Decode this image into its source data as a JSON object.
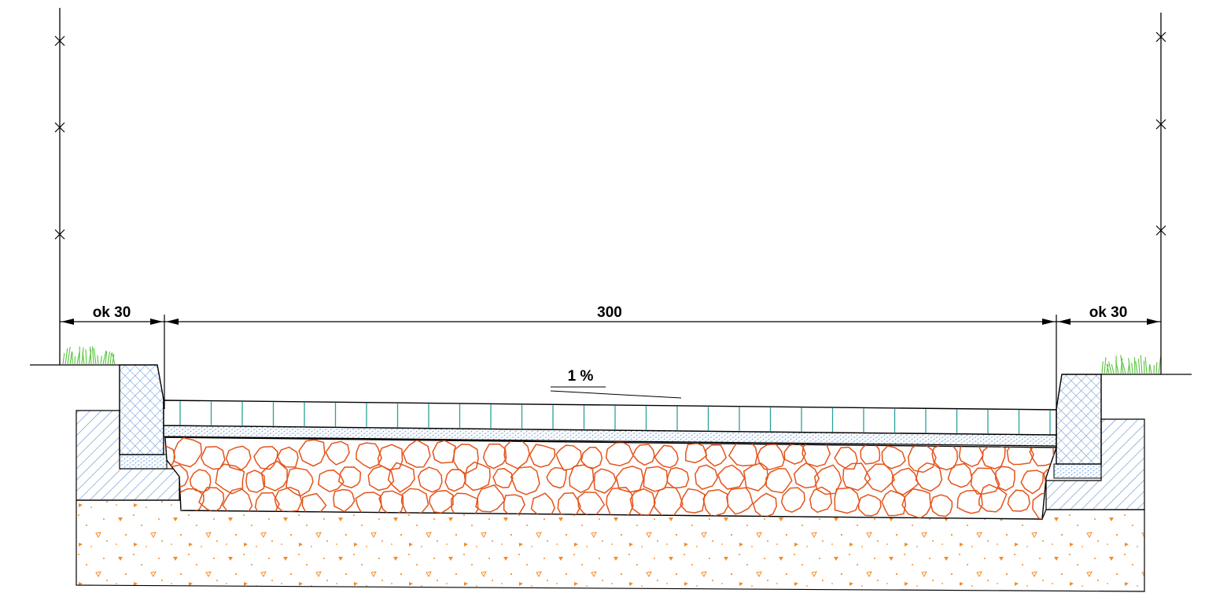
{
  "dimensions": {
    "left_curb_offset": "ok 30",
    "road_width": "300",
    "right_curb_offset": "ok 30"
  },
  "slope": {
    "label": "1 %"
  },
  "materials": [
    {
      "id": "paving",
      "color": "#2aa198"
    },
    {
      "id": "sand-bedding",
      "color": "#6a9fd6"
    },
    {
      "id": "stone-base",
      "color": "#e4541b"
    },
    {
      "id": "subsoil",
      "color": "#f28c28"
    },
    {
      "id": "concrete-footing",
      "color": "#5b8fd1"
    },
    {
      "id": "curb",
      "color": "#5b8fd1"
    },
    {
      "id": "grass",
      "color": "#55c43a"
    }
  ]
}
